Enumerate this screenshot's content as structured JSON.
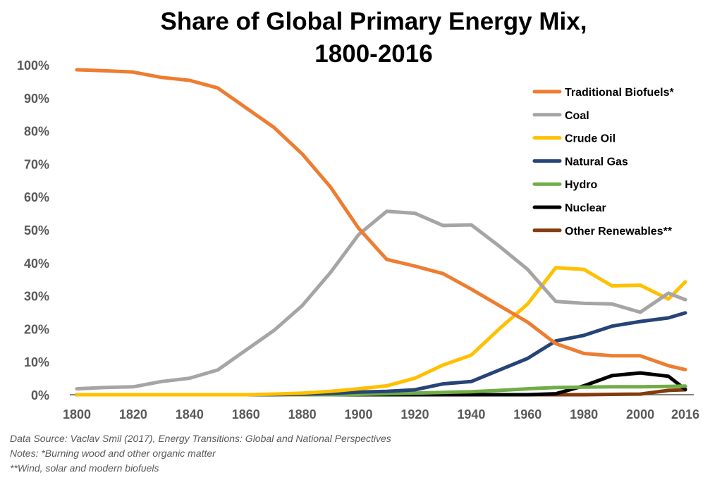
{
  "chart_data": {
    "type": "line",
    "title_line1": "Share of Global Primary Energy Mix,",
    "title_line2": "1800-2016",
    "xlabel": "",
    "ylabel": "",
    "x": [
      1800,
      1810,
      1820,
      1830,
      1840,
      1850,
      1860,
      1870,
      1880,
      1890,
      1900,
      1910,
      1920,
      1930,
      1940,
      1950,
      1960,
      1970,
      1980,
      1990,
      2000,
      2010,
      2016
    ],
    "x_ticks": [
      "1800",
      "1820",
      "1840",
      "1860",
      "1880",
      "1900",
      "1920",
      "1940",
      "1960",
      "1980",
      "2000",
      "2016"
    ],
    "y_ticks": [
      "0%",
      "10%",
      "20%",
      "30%",
      "40%",
      "50%",
      "60%",
      "70%",
      "80%",
      "90%",
      "100%"
    ],
    "ylim": [
      0,
      100
    ],
    "xlim": [
      1800,
      2016
    ],
    "grid": false,
    "legend_position": "top-right",
    "series": [
      {
        "name": "Traditional Biofuels*",
        "color": "#ED7D31",
        "values": [
          98.5,
          98.2,
          97.8,
          96.2,
          95.3,
          93.0,
          87.0,
          81.0,
          73.0,
          63.0,
          50.5,
          41.0,
          39.0,
          36.7,
          32.0,
          27.0,
          22.0,
          15.5,
          12.5,
          11.8,
          11.8,
          8.8,
          7.6
        ]
      },
      {
        "name": "Coal",
        "color": "#A5A5A5",
        "values": [
          1.8,
          2.2,
          2.4,
          4.0,
          5.0,
          7.5,
          13.5,
          19.5,
          27.0,
          37.0,
          48.5,
          55.6,
          55.0,
          51.3,
          51.5,
          45.0,
          38.0,
          28.3,
          27.7,
          27.5,
          25.0,
          30.8,
          28.8
        ]
      },
      {
        "name": "Crude Oil",
        "color": "#FFC000",
        "values": [
          0,
          0,
          0,
          0,
          0,
          0,
          0,
          0.2,
          0.5,
          1.0,
          1.8,
          2.7,
          5.0,
          9.0,
          12.0,
          20.0,
          27.5,
          38.5,
          38.0,
          33.0,
          33.2,
          29.0,
          34.2
        ]
      },
      {
        "name": "Natural Gas",
        "color": "#264478",
        "values": [
          0,
          0,
          0,
          0,
          0,
          0,
          0,
          0,
          0.2,
          0.4,
          0.8,
          1.0,
          1.5,
          3.3,
          4.0,
          7.5,
          11.0,
          16.3,
          18.0,
          20.8,
          22.2,
          23.3,
          24.8
        ]
      },
      {
        "name": "Hydro",
        "color": "#70AD47",
        "values": [
          0,
          0,
          0,
          0,
          0,
          0,
          0,
          0,
          0,
          0,
          0.1,
          0.3,
          0.5,
          0.7,
          0.9,
          1.3,
          1.8,
          2.2,
          2.3,
          2.4,
          2.4,
          2.5,
          2.6
        ]
      },
      {
        "name": "Nuclear",
        "color": "#000000",
        "values": [
          0,
          0,
          0,
          0,
          0,
          0,
          0,
          0,
          0,
          0,
          0,
          0,
          0,
          0,
          0,
          0,
          0,
          0.3,
          2.7,
          5.8,
          6.6,
          5.6,
          1.6
        ]
      },
      {
        "name": "Other Renewables**",
        "color": "#843C0C",
        "values": [
          0,
          0,
          0,
          0,
          0,
          0,
          0,
          0,
          0,
          0,
          0,
          0,
          0,
          0,
          0,
          0,
          0,
          0,
          0,
          0.1,
          0.2,
          1.3,
          1.5
        ]
      }
    ]
  },
  "notes": {
    "line1": "Data Source: Vaclav Smil (2017), Energy Transitions: Global and National Perspectives",
    "line2": "Notes: *Burning wood and other organic matter",
    "line3": "**Wind, solar and modern biofuels"
  },
  "colors": {
    "axis": "#595959",
    "tick_text": "#595959"
  }
}
